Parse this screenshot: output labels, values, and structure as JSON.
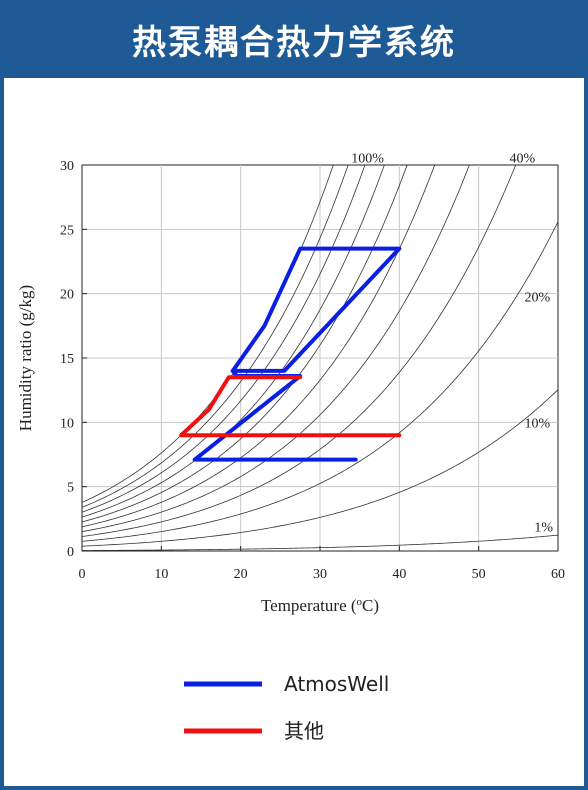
{
  "title": "热泵耦合热力学系统",
  "colors": {
    "header_bg": "#1e5a96",
    "series_blue": "#0a1fe6",
    "series_red": "#f01010",
    "rh_curve": "#333333",
    "grid": "#c8c8c8"
  },
  "chart_data": {
    "type": "line",
    "title": "",
    "xlabel": "Temperature (°C)",
    "xlabel_parts": [
      "Temperature (",
      "o",
      "C)"
    ],
    "ylabel": "Humidity ratio (g/kg)",
    "xlim": [
      0,
      60
    ],
    "ylim": [
      0,
      30
    ],
    "xticks": [
      0,
      10,
      20,
      30,
      40,
      50,
      60
    ],
    "yticks": [
      0,
      5,
      10,
      15,
      20,
      25,
      30
    ],
    "grid": true,
    "rh_curves_percent": [
      1,
      10,
      20,
      30,
      40,
      50,
      60,
      70,
      80,
      90,
      100
    ],
    "rh_labels": [
      {
        "text": "100%",
        "x": 36,
        "y": 30.2
      },
      {
        "text": "40%",
        "x": 55.5,
        "y": 30.2
      },
      {
        "text": "20%",
        "x": 57.4,
        "y": 19.4
      },
      {
        "text": "10%",
        "x": 57.4,
        "y": 9.6
      },
      {
        "text": "1%",
        "x": 58.2,
        "y": 1.5
      }
    ],
    "series": [
      {
        "name": "AtmosWell",
        "x": [
          34.5,
          14.2,
          27.5,
          19.5,
          19.0,
          25.5,
          40.0,
          27.5,
          23.0,
          19.0
        ],
        "y": [
          7.1,
          7.1,
          13.6,
          13.6,
          14.0,
          14.0,
          23.5,
          23.5,
          17.5,
          14.0
        ]
      },
      {
        "name": "其他",
        "x": [
          40.0,
          12.5,
          16.0,
          18.5,
          27.5
        ],
        "y": [
          9.0,
          9.0,
          11.0,
          13.5,
          13.5
        ]
      }
    ],
    "legend": {
      "placement": "bottom",
      "entries": [
        "AtmosWell",
        "其他"
      ]
    }
  }
}
